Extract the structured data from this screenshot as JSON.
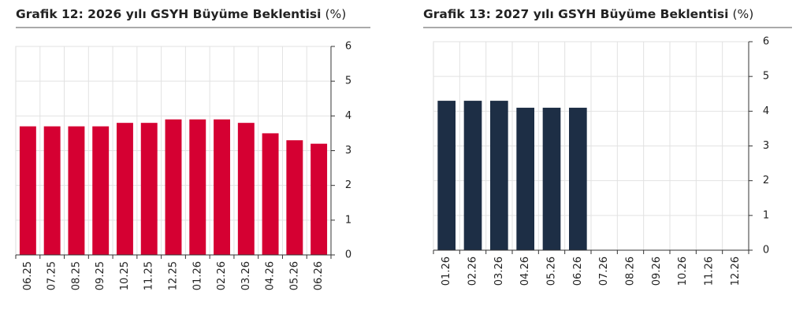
{
  "chart_data": [
    {
      "type": "bar",
      "title": "Grafik 12: 2026 yılı GSYH Büyüme Beklentisi",
      "unit": "(%)",
      "categories": [
        "06.25",
        "07.25",
        "08.25",
        "09.25",
        "10.25",
        "11.25",
        "12.25",
        "01.26",
        "02.26",
        "03.26",
        "04.26",
        "05.26",
        "06.26"
      ],
      "values": [
        3.7,
        3.7,
        3.7,
        3.7,
        3.8,
        3.8,
        3.9,
        3.9,
        3.9,
        3.8,
        3.5,
        3.3,
        3.2
      ],
      "color": "#d50032",
      "ylim": [
        0,
        6
      ],
      "yticks": [
        0,
        1,
        2,
        3,
        4,
        5,
        6
      ],
      "grid": true
    },
    {
      "type": "bar",
      "title": "Grafik 13: 2027 yılı GSYH Büyüme Beklentisi",
      "unit": "(%)",
      "categories": [
        "01.26",
        "02.26",
        "03.26",
        "04.26",
        "05.26",
        "06.26",
        "07.26",
        "08.26",
        "09.26",
        "10.26",
        "11.26",
        "12.26"
      ],
      "values": [
        4.3,
        4.3,
        4.3,
        4.1,
        4.1,
        4.1,
        null,
        null,
        null,
        null,
        null,
        null
      ],
      "color": "#1d2e45",
      "ylim": [
        0,
        6
      ],
      "yticks": [
        0,
        1,
        2,
        3,
        4,
        5,
        6
      ],
      "grid": true
    }
  ]
}
